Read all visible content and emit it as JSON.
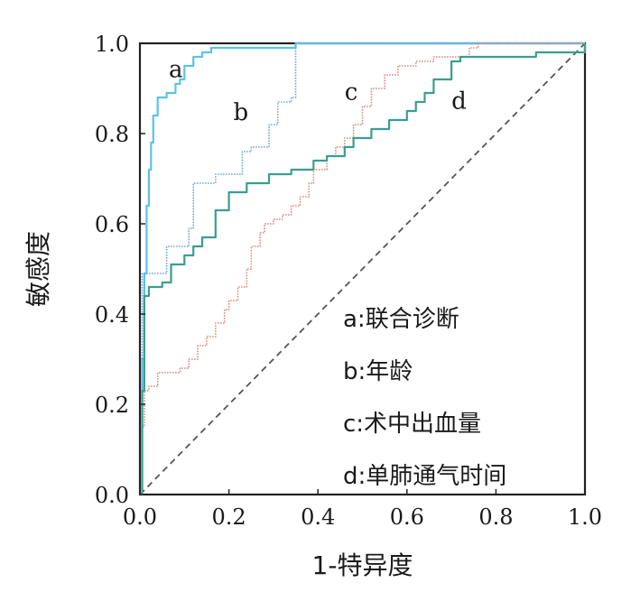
{
  "chart_data": {
    "type": "line",
    "xlabel": "1-特异度",
    "ylabel": "敏感度",
    "xlim": [
      0,
      1
    ],
    "ylim": [
      0,
      1
    ],
    "x_ticks": [
      "0.0",
      "0.2",
      "0.4",
      "0.6",
      "0.8",
      "1.0"
    ],
    "y_ticks": [
      "0.0",
      "0.2",
      "0.4",
      "0.6",
      "0.8",
      "1.0"
    ],
    "grid": false,
    "legend_position": "bottom-right",
    "reference_line": {
      "style": "dashed",
      "color": "#555555",
      "x": [
        0,
        1
      ],
      "y": [
        0,
        1
      ]
    },
    "series": [
      {
        "name": "a",
        "legend": "a:联合诊断",
        "color": "#5bc3e6",
        "style": "solid",
        "x": [
          0,
          0.005,
          0.005,
          0.01,
          0.01,
          0.015,
          0.015,
          0.02,
          0.02,
          0.025,
          0.025,
          0.03,
          0.03,
          0.04,
          0.04,
          0.06,
          0.06,
          0.08,
          0.08,
          0.09,
          0.09,
          0.1,
          0.1,
          0.12,
          0.12,
          0.14,
          0.14,
          0.16,
          0.16,
          0.35,
          0.35,
          1.0
        ],
        "y": [
          0,
          0,
          0.3,
          0.3,
          0.49,
          0.49,
          0.64,
          0.64,
          0.72,
          0.72,
          0.78,
          0.78,
          0.84,
          0.84,
          0.88,
          0.88,
          0.89,
          0.89,
          0.91,
          0.91,
          0.92,
          0.92,
          0.95,
          0.95,
          0.97,
          0.97,
          0.98,
          0.98,
          0.99,
          0.99,
          1.0,
          1.0
        ]
      },
      {
        "name": "b",
        "legend": "b:年龄",
        "color": "#6aa9d8",
        "style": "dotted",
        "x": [
          0,
          0.005,
          0.005,
          0.06,
          0.06,
          0.11,
          0.11,
          0.12,
          0.12,
          0.17,
          0.17,
          0.23,
          0.23,
          0.25,
          0.25,
          0.29,
          0.29,
          0.31,
          0.31,
          0.34,
          0.34,
          0.35,
          0.35,
          1.0
        ],
        "y": [
          0,
          0,
          0.49,
          0.49,
          0.55,
          0.55,
          0.59,
          0.59,
          0.69,
          0.69,
          0.71,
          0.71,
          0.76,
          0.76,
          0.77,
          0.77,
          0.82,
          0.82,
          0.87,
          0.87,
          0.88,
          0.88,
          1.0,
          1.0
        ]
      },
      {
        "name": "c",
        "legend": "c:术中出血量",
        "color": "#d98a7e",
        "style": "dotted",
        "x": [
          0,
          0.005,
          0.005,
          0.01,
          0.01,
          0.02,
          0.02,
          0.04,
          0.04,
          0.09,
          0.09,
          0.11,
          0.11,
          0.13,
          0.13,
          0.15,
          0.15,
          0.17,
          0.17,
          0.19,
          0.19,
          0.2,
          0.2,
          0.22,
          0.22,
          0.24,
          0.24,
          0.25,
          0.25,
          0.27,
          0.27,
          0.28,
          0.28,
          0.3,
          0.3,
          0.32,
          0.32,
          0.34,
          0.34,
          0.36,
          0.36,
          0.38,
          0.38,
          0.39,
          0.39,
          0.42,
          0.42,
          0.44,
          0.44,
          0.46,
          0.46,
          0.48,
          0.48,
          0.5,
          0.5,
          0.52,
          0.52,
          0.55,
          0.55,
          0.58,
          0.58,
          0.62,
          0.62,
          0.66,
          0.66,
          0.74,
          0.74,
          0.76,
          0.76,
          1.0
        ],
        "y": [
          0,
          0,
          0.15,
          0.15,
          0.23,
          0.23,
          0.24,
          0.24,
          0.27,
          0.27,
          0.28,
          0.28,
          0.3,
          0.3,
          0.33,
          0.33,
          0.35,
          0.35,
          0.38,
          0.38,
          0.41,
          0.41,
          0.43,
          0.43,
          0.46,
          0.46,
          0.5,
          0.5,
          0.55,
          0.55,
          0.58,
          0.58,
          0.6,
          0.6,
          0.61,
          0.61,
          0.62,
          0.62,
          0.64,
          0.64,
          0.66,
          0.66,
          0.69,
          0.69,
          0.72,
          0.72,
          0.75,
          0.75,
          0.77,
          0.77,
          0.79,
          0.79,
          0.82,
          0.82,
          0.86,
          0.86,
          0.9,
          0.9,
          0.93,
          0.93,
          0.95,
          0.95,
          0.96,
          0.96,
          0.97,
          0.97,
          0.99,
          0.99,
          1.0,
          1.0
        ]
      },
      {
        "name": "d",
        "legend": "d:单肺通气时间",
        "color": "#3a9e8e",
        "style": "solid",
        "x": [
          0,
          0.005,
          0.005,
          0.01,
          0.01,
          0.02,
          0.02,
          0.05,
          0.05,
          0.07,
          0.07,
          0.1,
          0.1,
          0.12,
          0.12,
          0.14,
          0.14,
          0.17,
          0.17,
          0.2,
          0.2,
          0.24,
          0.24,
          0.29,
          0.29,
          0.34,
          0.34,
          0.39,
          0.39,
          0.42,
          0.42,
          0.46,
          0.46,
          0.48,
          0.48,
          0.52,
          0.52,
          0.56,
          0.56,
          0.6,
          0.6,
          0.62,
          0.62,
          0.64,
          0.64,
          0.66,
          0.66,
          0.7,
          0.7,
          0.72,
          0.72,
          0.89,
          0.89,
          1.0,
          1.0
        ],
        "y": [
          0,
          0,
          0.23,
          0.23,
          0.44,
          0.44,
          0.46,
          0.46,
          0.47,
          0.47,
          0.51,
          0.51,
          0.53,
          0.53,
          0.55,
          0.55,
          0.57,
          0.57,
          0.63,
          0.63,
          0.67,
          0.67,
          0.69,
          0.69,
          0.71,
          0.71,
          0.72,
          0.72,
          0.74,
          0.74,
          0.75,
          0.75,
          0.77,
          0.77,
          0.79,
          0.79,
          0.81,
          0.81,
          0.83,
          0.83,
          0.85,
          0.85,
          0.87,
          0.87,
          0.89,
          0.89,
          0.92,
          0.92,
          0.96,
          0.96,
          0.97,
          0.97,
          0.98,
          0.98,
          1.0
        ]
      }
    ]
  }
}
